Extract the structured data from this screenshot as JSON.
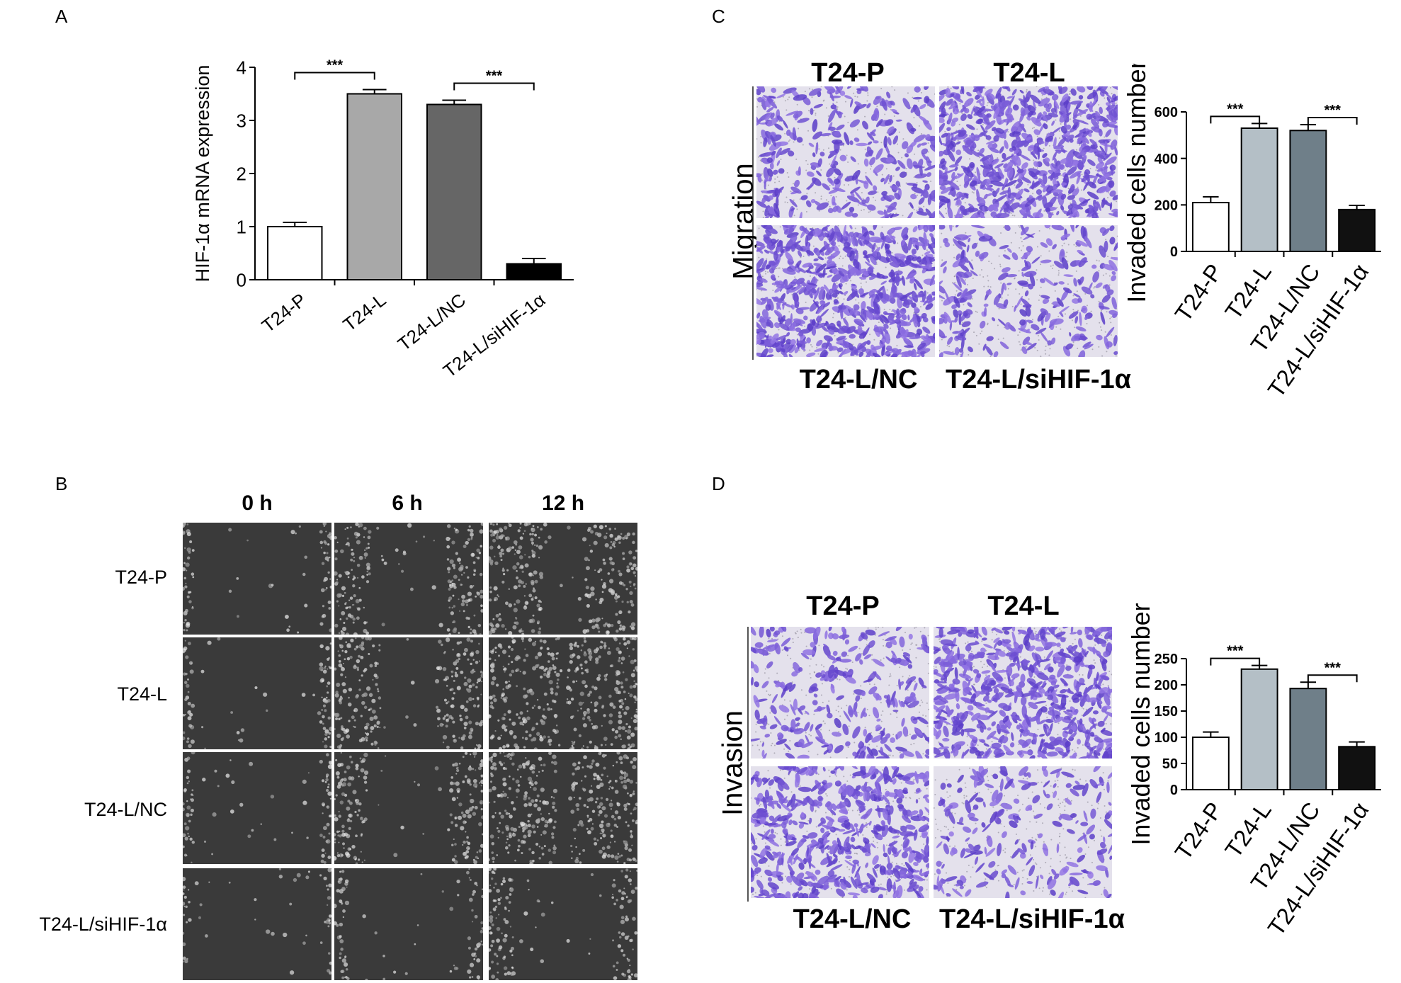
{
  "panels": {
    "A": {
      "letter": "A",
      "chart_data": {
        "type": "bar",
        "categories": [
          "T24-P",
          "T24-L",
          "T24-L/NC",
          "T24-L/siHIF-1α"
        ],
        "values": [
          1.0,
          3.5,
          3.3,
          0.3
        ],
        "errors": [
          0.08,
          0.08,
          0.08,
          0.1
        ],
        "bar_colors": [
          "#ffffff",
          "#a8a8a8",
          "#666666",
          "#000000"
        ],
        "ylabel": "HIF-1α mRNA expression",
        "ylim": [
          0,
          4
        ],
        "yticks": [
          "0",
          "1",
          "2",
          "3",
          "4"
        ],
        "significance": [
          {
            "from": 0,
            "to": 1,
            "label": "***"
          },
          {
            "from": 2,
            "to": 3,
            "label": "***"
          }
        ]
      }
    },
    "B": {
      "letter": "B",
      "time_labels": [
        "0 h",
        "6 h",
        "12 h"
      ],
      "row_labels": [
        "T24-P",
        "T24-L",
        "T24-L/NC",
        "T24-L/siHIF-1α"
      ]
    },
    "C": {
      "letter": "C",
      "side_label": "Migration",
      "top_labels": [
        "T24-P",
        "T24-L"
      ],
      "bottom_labels": [
        "T24-L/NC",
        "T24-L/siHIF-1α"
      ],
      "chart_data": {
        "type": "bar",
        "categories": [
          "T24-P",
          "T24-L",
          "T24-L/NC",
          "T24-L/siHIF-1α"
        ],
        "values": [
          210,
          530,
          520,
          180
        ],
        "errors": [
          25,
          20,
          25,
          18
        ],
        "bar_colors": [
          "#ffffff",
          "#b4bfc6",
          "#6f7f89",
          "#111111"
        ],
        "ylabel": "Invaded cells number",
        "ylim": [
          0,
          600
        ],
        "yticks": [
          "0",
          "200",
          "400",
          "600"
        ],
        "significance": [
          {
            "from": 0,
            "to": 1,
            "label": "***"
          },
          {
            "from": 2,
            "to": 3,
            "label": "***"
          }
        ]
      }
    },
    "D": {
      "letter": "D",
      "side_label": "Invasion",
      "top_labels": [
        "T24-P",
        "T24-L"
      ],
      "bottom_labels": [
        "T24-L/NC",
        "T24-L/siHIF-1α"
      ],
      "chart_data": {
        "type": "bar",
        "categories": [
          "T24-P",
          "T24-L",
          "T24-L/NC",
          "T24-L/siHIF-1α"
        ],
        "values": [
          100,
          230,
          193,
          82
        ],
        "errors": [
          10,
          7,
          12,
          9
        ],
        "bar_colors": [
          "#ffffff",
          "#b4bfc6",
          "#6f7f89",
          "#111111"
        ],
        "ylabel": "Invaded cells number",
        "ylim": [
          0,
          250
        ],
        "yticks": [
          "0",
          "50",
          "100",
          "150",
          "200",
          "250"
        ],
        "significance": [
          {
            "from": 0,
            "to": 1,
            "label": "***"
          },
          {
            "from": 2,
            "to": 3,
            "label": "***"
          }
        ]
      }
    }
  }
}
